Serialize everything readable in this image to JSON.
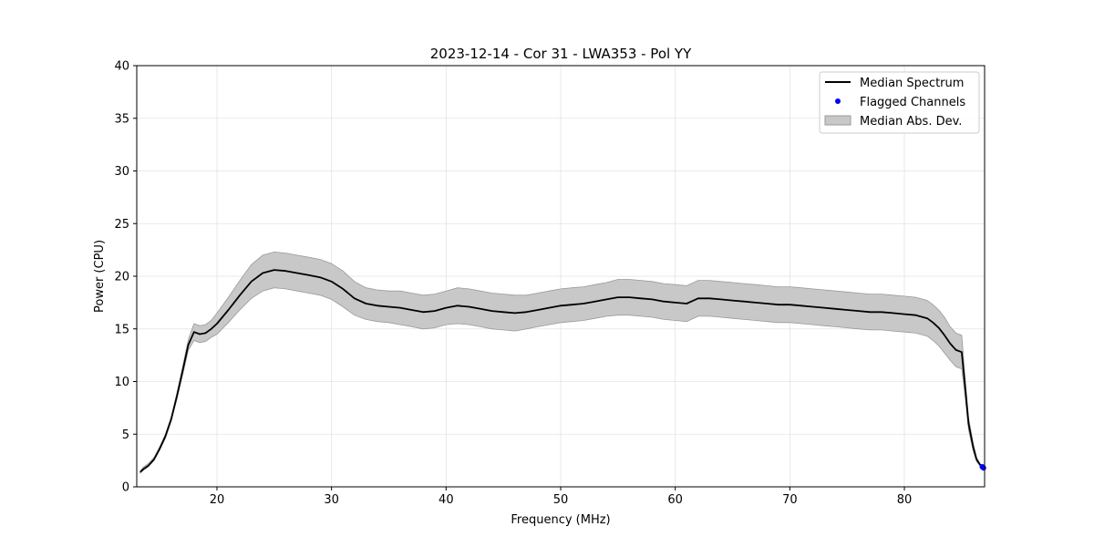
{
  "colors": {
    "line": "#000000",
    "flagged": "#0000ff",
    "band": "#c8c8c8",
    "band_edge": "#9a9a9a",
    "grid": "#e3e3e3"
  },
  "chart_data": {
    "type": "line",
    "title": "2023-12-14 - Cor 31 - LWA353 - Pol YY",
    "xlabel": "Frequency (MHz)",
    "ylabel": "Power (CPU)",
    "xlim": [
      13,
      87
    ],
    "ylim": [
      0,
      40
    ],
    "grid": true,
    "legend_position": "top-right",
    "x_ticks": [
      "20",
      "30",
      "40",
      "50",
      "60",
      "70",
      "80"
    ],
    "x_tick_values": [
      20,
      30,
      40,
      50,
      60,
      70,
      80
    ],
    "y_ticks": [
      "0",
      "5",
      "10",
      "15",
      "20",
      "25",
      "30",
      "35",
      "40"
    ],
    "y_tick_values": [
      0,
      5,
      10,
      15,
      20,
      25,
      30,
      35,
      40
    ],
    "legend": [
      {
        "label": "Median Spectrum",
        "kind": "line"
      },
      {
        "label": "Flagged Channels",
        "kind": "point"
      },
      {
        "label": "Median Abs. Dev.",
        "kind": "band"
      }
    ],
    "series": [
      {
        "name": "Median Spectrum",
        "x": [
          13.3,
          13.6,
          14.0,
          14.5,
          15.0,
          15.5,
          16.0,
          16.5,
          17.0,
          17.5,
          18.0,
          18.5,
          19.0,
          19.5,
          20.0,
          21.0,
          22.0,
          23.0,
          24.0,
          25.0,
          26.0,
          27.0,
          28.0,
          29.0,
          30.0,
          31.0,
          32.0,
          33.0,
          34.0,
          35.0,
          36.0,
          37.0,
          38.0,
          39.0,
          40.0,
          41.0,
          42.0,
          43.0,
          44.0,
          45.0,
          46.0,
          47.0,
          48.0,
          49.0,
          50.0,
          51.0,
          52.0,
          53.0,
          54.0,
          55.0,
          56.0,
          57.0,
          58.0,
          59.0,
          60.0,
          61.0,
          62.0,
          63.0,
          64.0,
          65.0,
          66.0,
          67.0,
          68.0,
          69.0,
          70.0,
          71.0,
          72.0,
          73.0,
          74.0,
          75.0,
          76.0,
          77.0,
          78.0,
          79.0,
          80.0,
          81.0,
          82.0,
          82.5,
          83.0,
          83.5,
          84.0,
          84.5,
          85.0,
          85.3,
          85.6,
          86.0,
          86.3,
          86.6,
          86.8
        ],
        "y": [
          1.4,
          1.7,
          2.0,
          2.6,
          3.6,
          4.8,
          6.4,
          8.6,
          11.0,
          13.5,
          14.7,
          14.5,
          14.6,
          15.0,
          15.5,
          16.8,
          18.2,
          19.5,
          20.3,
          20.6,
          20.5,
          20.3,
          20.1,
          19.9,
          19.5,
          18.8,
          17.9,
          17.4,
          17.2,
          17.1,
          17.0,
          16.8,
          16.6,
          16.7,
          17.0,
          17.2,
          17.1,
          16.9,
          16.7,
          16.6,
          16.5,
          16.6,
          16.8,
          17.0,
          17.2,
          17.3,
          17.4,
          17.6,
          17.8,
          18.0,
          18.0,
          17.9,
          17.8,
          17.6,
          17.5,
          17.4,
          17.9,
          17.9,
          17.8,
          17.7,
          17.6,
          17.5,
          17.4,
          17.3,
          17.3,
          17.2,
          17.1,
          17.0,
          16.9,
          16.8,
          16.7,
          16.6,
          16.6,
          16.5,
          16.4,
          16.3,
          16.0,
          15.6,
          15.1,
          14.4,
          13.6,
          13.0,
          12.8,
          9.5,
          6.0,
          3.8,
          2.6,
          2.1,
          1.9
        ]
      },
      {
        "name": "Median Abs. Dev.",
        "x": [
          13.3,
          13.6,
          14.0,
          14.5,
          15.0,
          15.5,
          16.0,
          16.5,
          17.0,
          17.5,
          18.0,
          18.5,
          19.0,
          19.5,
          20.0,
          21.0,
          22.0,
          23.0,
          24.0,
          25.0,
          26.0,
          27.0,
          28.0,
          29.0,
          30.0,
          31.0,
          32.0,
          33.0,
          34.0,
          35.0,
          36.0,
          37.0,
          38.0,
          39.0,
          40.0,
          41.0,
          42.0,
          43.0,
          44.0,
          45.0,
          46.0,
          47.0,
          48.0,
          49.0,
          50.0,
          51.0,
          52.0,
          53.0,
          54.0,
          55.0,
          56.0,
          57.0,
          58.0,
          59.0,
          60.0,
          61.0,
          62.0,
          63.0,
          64.0,
          65.0,
          66.0,
          67.0,
          68.0,
          69.0,
          70.0,
          71.0,
          72.0,
          73.0,
          74.0,
          75.0,
          76.0,
          77.0,
          78.0,
          79.0,
          80.0,
          81.0,
          82.0,
          82.5,
          83.0,
          83.5,
          84.0,
          84.5,
          85.0,
          85.3,
          85.6,
          86.0,
          86.3,
          86.6,
          86.8
        ],
        "lower": [
          1.3,
          1.6,
          1.9,
          2.5,
          3.5,
          4.6,
          6.2,
          8.3,
          10.6,
          13.0,
          13.9,
          13.7,
          13.8,
          14.2,
          14.5,
          15.6,
          16.8,
          17.9,
          18.6,
          18.9,
          18.8,
          18.6,
          18.4,
          18.2,
          17.8,
          17.1,
          16.3,
          15.9,
          15.7,
          15.6,
          15.4,
          15.2,
          15.0,
          15.1,
          15.4,
          15.5,
          15.4,
          15.2,
          15.0,
          14.9,
          14.8,
          15.0,
          15.2,
          15.4,
          15.6,
          15.7,
          15.8,
          16.0,
          16.2,
          16.3,
          16.3,
          16.2,
          16.1,
          15.9,
          15.8,
          15.7,
          16.2,
          16.2,
          16.1,
          16.0,
          15.9,
          15.8,
          15.7,
          15.6,
          15.6,
          15.5,
          15.4,
          15.3,
          15.2,
          15.1,
          15.0,
          14.9,
          14.9,
          14.8,
          14.7,
          14.6,
          14.3,
          13.9,
          13.4,
          12.7,
          12.0,
          11.4,
          11.2,
          8.6,
          5.4,
          3.4,
          2.4,
          2.0,
          1.8
        ],
        "upper": [
          1.5,
          1.9,
          2.2,
          2.8,
          3.8,
          5.0,
          6.6,
          8.9,
          11.4,
          14.0,
          15.5,
          15.3,
          15.4,
          15.8,
          16.5,
          18.0,
          19.6,
          21.1,
          22.0,
          22.3,
          22.2,
          22.0,
          21.8,
          21.6,
          21.2,
          20.5,
          19.5,
          18.9,
          18.7,
          18.6,
          18.6,
          18.4,
          18.2,
          18.3,
          18.6,
          18.9,
          18.8,
          18.6,
          18.4,
          18.3,
          18.2,
          18.2,
          18.4,
          18.6,
          18.8,
          18.9,
          19.0,
          19.2,
          19.4,
          19.7,
          19.7,
          19.6,
          19.5,
          19.3,
          19.2,
          19.1,
          19.6,
          19.6,
          19.5,
          19.4,
          19.3,
          19.2,
          19.1,
          19.0,
          19.0,
          18.9,
          18.8,
          18.7,
          18.6,
          18.5,
          18.4,
          18.3,
          18.3,
          18.2,
          18.1,
          18.0,
          17.7,
          17.3,
          16.8,
          16.1,
          15.2,
          14.6,
          14.4,
          10.4,
          6.6,
          4.2,
          2.8,
          2.2,
          2.0
        ]
      }
    ],
    "flagged_points": [
      {
        "x": 86.8,
        "y": 1.9
      },
      {
        "x": 86.9,
        "y": 1.8
      }
    ]
  }
}
